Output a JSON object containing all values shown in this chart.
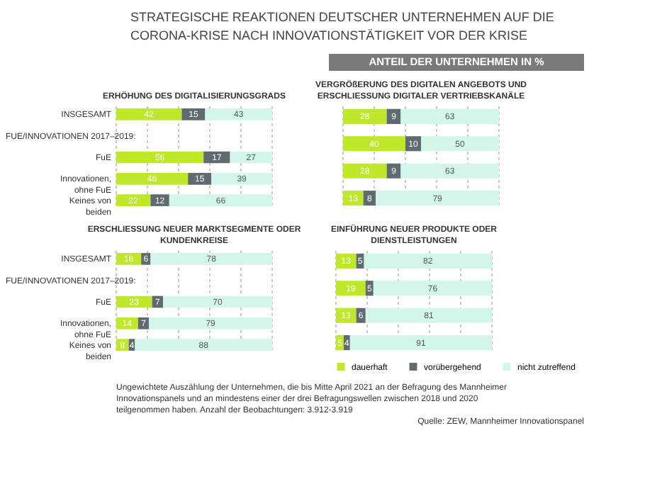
{
  "chart_data": [
    {
      "type": "other",
      "title": "STRATEGISCHE REAKTIONEN DEUTSCHER UNTERNEHMEN AUF DIE CORONA-KRISE NACH INNOVATIONSTÄTIGKEIT VOR DER KRISE",
      "subtitle": "ANTEIL DER UNTERNEHMEN IN %",
      "annotations": [
        "Ungewichtete Auszählung der Unternehmen, die bis Mitte April 2021 an der Befragung des Mannheimer Innovationspanels und an mindestens einer der drei Befragungswellen zwischen 2018 und 2020 teilgenommen haben. Anzahl der Beobachtungen: 3.912-3.919",
        "Quelle: ZEW, Mannheimer Innovationspanel"
      ]
    },
    {
      "type": "bar",
      "orientation": "horizontal",
      "stacked": true,
      "title": "ERHÖHUNG DES DIGITALISIERUNGSGRADS",
      "categories": [
        "INSGESAMT",
        "FuE",
        "Innovationen, ohne FuE",
        "Keines von beiden"
      ],
      "annotations": [
        "FUE/INNOVATIONEN 2017–2019:"
      ],
      "xlim": [
        0,
        100
      ],
      "xticks": [
        {
          "value": 0,
          "label": null
        },
        {
          "value": 20,
          "label": null
        },
        {
          "value": 40,
          "label": null
        },
        {
          "value": 60,
          "label": null
        },
        {
          "value": 80,
          "label": null
        },
        {
          "value": 100,
          "label": null
        }
      ],
      "grid": "x",
      "tick_labels": "y",
      "data_labels": true,
      "legend": false,
      "series": [
        {
          "color": "#bfe82a",
          "values": [
            42,
            56,
            46,
            22
          ]
        },
        {
          "color": "#5f6b70",
          "values": [
            15,
            17,
            15,
            12
          ]
        },
        {
          "color": "#d3f6ea",
          "values": [
            43,
            27,
            39,
            66
          ]
        }
      ]
    },
    {
      "type": "bar",
      "orientation": "horizontal",
      "stacked": true,
      "title": "VERGRÖßERUNG DES DIGITALEN ANGEBOTS UND ERSCHLIESSUNG DIGITALER VERTRIEBSKANÄLE",
      "categories": [
        null,
        null,
        null,
        null
      ],
      "xlim": [
        0,
        100
      ],
      "xticks": [
        {
          "value": 0,
          "label": null
        },
        {
          "value": 20,
          "label": null
        },
        {
          "value": 40,
          "label": null
        },
        {
          "value": 60,
          "label": null
        },
        {
          "value": 80,
          "label": null
        },
        {
          "value": 100,
          "label": null
        }
      ],
      "grid": "x",
      "tick_labels": false,
      "data_labels": true,
      "legend": false,
      "series": [
        {
          "color": "#bfe82a",
          "values": [
            28,
            40,
            28,
            13
          ]
        },
        {
          "color": "#5f6b70",
          "values": [
            9,
            10,
            9,
            8
          ]
        },
        {
          "color": "#d3f6ea",
          "values": [
            63,
            50,
            63,
            79
          ]
        }
      ]
    },
    {
      "type": "bar",
      "orientation": "horizontal",
      "stacked": true,
      "title": "ERSCHLIESSUNG NEUER MARKTSEGMENTE ODER KUNDENKREISE",
      "categories": [
        "INSGESAMT",
        "FuE",
        "Innovationen, ohne FuE",
        "Keines von beiden"
      ],
      "annotations": [
        "FUE/INNOVATIONEN 2017–2019:"
      ],
      "xlim": [
        0,
        100
      ],
      "xticks": [
        {
          "value": 0,
          "label": null
        },
        {
          "value": 20,
          "label": null
        },
        {
          "value": 40,
          "label": null
        },
        {
          "value": 60,
          "label": null
        },
        {
          "value": 80,
          "label": null
        },
        {
          "value": 100,
          "label": null
        }
      ],
      "grid": "x",
      "tick_labels": "y",
      "data_labels": true,
      "legend": false,
      "series": [
        {
          "color": "#bfe82a",
          "values": [
            16,
            23,
            14,
            8
          ]
        },
        {
          "color": "#5f6b70",
          "values": [
            6,
            7,
            7,
            4
          ]
        },
        {
          "color": "#d3f6ea",
          "values": [
            78,
            70,
            79,
            88
          ]
        }
      ]
    },
    {
      "type": "bar",
      "orientation": "horizontal",
      "stacked": true,
      "title": "EINFÜHRUNG NEUER PRODUKTE ODER DIENSTLEISTUNGEN",
      "categories": [
        null,
        null,
        null,
        null
      ],
      "xlim": [
        0,
        100
      ],
      "xticks": [
        {
          "value": 0,
          "label": null
        },
        {
          "value": 20,
          "label": null
        },
        {
          "value": 40,
          "label": null
        },
        {
          "value": 60,
          "label": null
        },
        {
          "value": 80,
          "label": null
        },
        {
          "value": 100,
          "label": null
        }
      ],
      "grid": "x",
      "tick_labels": false,
      "data_labels": true,
      "legend": "bottom",
      "series": [
        {
          "name": "dauerhaft",
          "color": "#bfe82a",
          "values": [
            13,
            19,
            13,
            5
          ]
        },
        {
          "name": "vorübergehend",
          "color": "#5f6b70",
          "values": [
            5,
            5,
            6,
            4
          ]
        },
        {
          "name": "nicht zutreffend",
          "color": "#d3f6ea",
          "values": [
            82,
            76,
            81,
            91
          ]
        }
      ]
    }
  ]
}
